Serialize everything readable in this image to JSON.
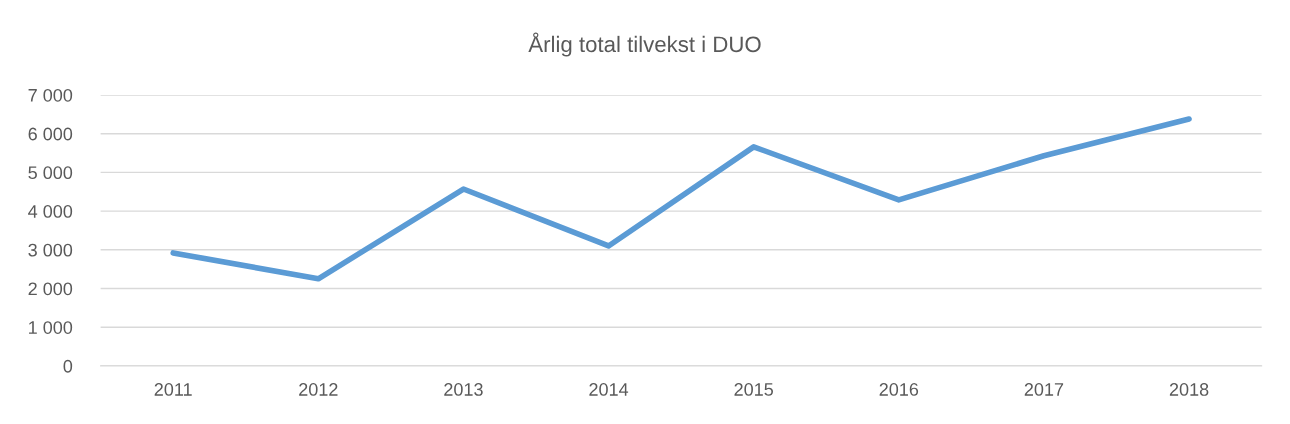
{
  "chart_data": {
    "type": "line",
    "title": "Årlig total tilvekst i DUO",
    "categories": [
      "2011",
      "2012",
      "2013",
      "2014",
      "2015",
      "2016",
      "2017",
      "2018"
    ],
    "series": [
      {
        "color": "#5b9bd5",
        "values": [
          2920,
          2250,
          4570,
          3100,
          5660,
          4290,
          5430,
          6380
        ]
      }
    ],
    "ylim": [
      0,
      7000
    ],
    "yticks": [
      0,
      {
        "value": 1000,
        "label": "1 000"
      },
      {
        "value": 2000,
        "label": "2 000"
      },
      {
        "value": 3000,
        "label": "3 000"
      },
      {
        "value": 4000,
        "label": "4 000"
      },
      {
        "value": 5000,
        "label": "5 000"
      },
      {
        "value": 6000,
        "label": "6 000"
      },
      {
        "value": 7000,
        "label": "7 000"
      }
    ],
    "grid": "y",
    "marker": "none",
    "line_style": "solid"
  }
}
